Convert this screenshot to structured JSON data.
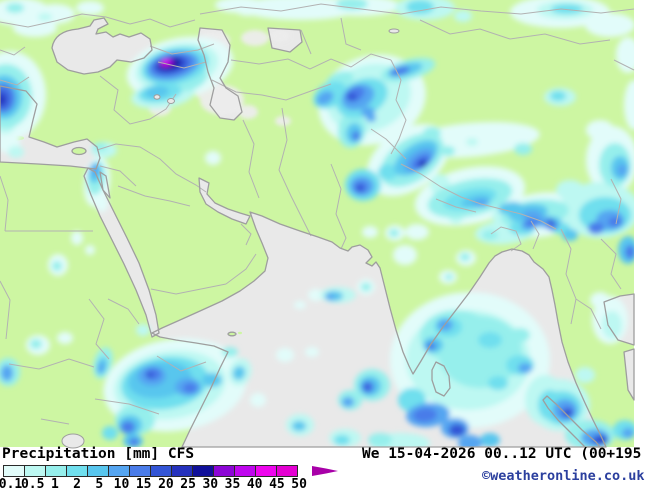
{
  "legend": {
    "title": "Precipitation [mm] CFS",
    "scale_labels": [
      "0.1",
      "0.5",
      "1",
      "2",
      "5",
      "10",
      "15",
      "20",
      "25",
      "30",
      "35",
      "40",
      "45",
      "50"
    ],
    "scale_colors": [
      "#e2fcfa",
      "#bdf8f2",
      "#96efec",
      "#70dfee",
      "#58c6ee",
      "#55a5f1",
      "#4a7ce9",
      "#3355d6",
      "#2531bd",
      "#10109a",
      "#8c06d6",
      "#bf06ee",
      "#ee06ee",
      "#e400d2"
    ],
    "arrow_color": "#a800a8"
  },
  "footer": {
    "datetime": "We 15-04-2026 00..12 UTC (00+195",
    "copyright": "©weatheronline.co.uk"
  },
  "colors": {
    "background": "#ffffff",
    "text": "#000000",
    "copyright_text": "#2b3f9e",
    "land": "#cdf6a2",
    "sea": "#e9e9e9",
    "coast": "#9e9e9e",
    "border": "#b2b2b2",
    "desert_haze": "#ededed"
  },
  "precipitation_blobs": [
    [
      20,
      12,
      30,
      14,
      0,
      0
    ],
    [
      55,
      14,
      20,
      10,
      0,
      0
    ],
    [
      35,
      28,
      22,
      9,
      0,
      0
    ],
    [
      15,
      8,
      9,
      5,
      2,
      0
    ],
    [
      45,
      17,
      7,
      4,
      1,
      0
    ],
    [
      90,
      8,
      14,
      7,
      0,
      0
    ],
    [
      240,
      5,
      25,
      8,
      0,
      0
    ],
    [
      10,
      95,
      36,
      44,
      0,
      0
    ],
    [
      6,
      96,
      26,
      32,
      2,
      0
    ],
    [
      4,
      97,
      18,
      22,
      4,
      0
    ],
    [
      3,
      98,
      12,
      15,
      6,
      0
    ],
    [
      2,
      99,
      7,
      9,
      7,
      0
    ],
    [
      1,
      100,
      4,
      5,
      8,
      0
    ],
    [
      8,
      143,
      12,
      10,
      0,
      0
    ],
    [
      16,
      152,
      8,
      6,
      1,
      0
    ],
    [
      5,
      125,
      10,
      9,
      1,
      0
    ],
    [
      180,
      68,
      54,
      30,
      0,
      -12
    ],
    [
      177,
      67,
      42,
      23,
      1,
      -12
    ],
    [
      175,
      66,
      34,
      18,
      3,
      -12
    ],
    [
      173,
      66,
      27,
      14,
      5,
      -12
    ],
    [
      172,
      65,
      22,
      11,
      6,
      -12
    ],
    [
      171,
      65,
      17,
      8.5,
      7,
      -12
    ],
    [
      170,
      64,
      13,
      6.5,
      8,
      -12
    ],
    [
      169,
      64,
      10,
      5,
      9,
      -12
    ],
    [
      167,
      63,
      7,
      4,
      10,
      -12
    ],
    [
      166,
      62,
      5,
      3,
      11,
      -12
    ],
    [
      165,
      62,
      3.5,
      2.2,
      12,
      -12
    ],
    [
      163,
      95,
      32,
      13,
      1,
      -8
    ],
    [
      160,
      93,
      22,
      9,
      3,
      -8
    ],
    [
      157,
      92,
      12,
      6,
      4,
      -8
    ],
    [
      190,
      80,
      18,
      10,
      2,
      -20
    ],
    [
      104,
      150,
      13,
      8,
      1,
      0
    ],
    [
      100,
      147,
      7,
      4,
      2,
      0
    ],
    [
      97,
      182,
      13,
      25,
      0,
      8
    ],
    [
      96,
      178,
      9,
      17,
      2,
      8
    ],
    [
      95,
      173,
      6,
      10,
      4,
      8
    ],
    [
      95,
      170,
      4,
      6,
      5,
      0
    ],
    [
      102,
      203,
      6,
      9,
      0,
      0
    ],
    [
      58,
      265,
      10,
      11,
      0,
      0
    ],
    [
      57,
      266,
      5,
      5,
      2,
      0
    ],
    [
      77,
      238,
      6,
      7,
      0,
      0
    ],
    [
      90,
      250,
      5,
      5,
      0,
      0
    ],
    [
      213,
      158,
      8,
      7,
      0,
      0
    ],
    [
      143,
      330,
      7,
      6,
      1,
      0
    ],
    [
      285,
      355,
      9,
      7,
      0,
      0
    ],
    [
      312,
      352,
      7,
      5,
      0,
      0
    ],
    [
      316,
      295,
      8,
      6,
      0,
      0
    ],
    [
      300,
      305,
      6,
      4,
      0,
      0
    ],
    [
      175,
      385,
      72,
      46,
      0,
      -8
    ],
    [
      170,
      385,
      56,
      34,
      1,
      -8
    ],
    [
      165,
      383,
      44,
      26,
      3,
      -8
    ],
    [
      160,
      380,
      32,
      18,
      4,
      -8
    ],
    [
      152,
      376,
      14,
      10,
      5,
      0
    ],
    [
      153,
      374,
      8,
      6,
      6,
      0
    ],
    [
      150,
      375,
      4,
      3,
      7,
      0
    ],
    [
      188,
      387,
      13,
      9,
      5,
      0
    ],
    [
      190,
      388,
      7,
      5,
      6,
      0
    ],
    [
      212,
      380,
      10,
      7,
      4,
      0
    ],
    [
      103,
      363,
      9,
      16,
      2,
      15
    ],
    [
      102,
      366,
      5,
      9,
      4,
      15
    ],
    [
      101,
      368,
      3,
      5,
      5,
      15
    ],
    [
      135,
      420,
      20,
      15,
      2,
      0
    ],
    [
      130,
      425,
      12,
      10,
      4,
      0
    ],
    [
      128,
      427,
      7,
      6,
      6,
      0
    ],
    [
      133,
      441,
      10,
      7,
      4,
      0
    ],
    [
      134,
      442,
      5,
      4,
      6,
      0
    ],
    [
      110,
      433,
      8,
      7,
      3,
      0
    ],
    [
      8,
      372,
      12,
      14,
      2,
      0
    ],
    [
      7,
      373,
      6,
      8,
      5,
      0
    ],
    [
      38,
      345,
      12,
      10,
      0,
      0
    ],
    [
      36,
      344,
      6,
      5,
      2,
      0
    ],
    [
      65,
      338,
      8,
      6,
      0,
      0
    ],
    [
      240,
      372,
      11,
      14,
      1,
      20
    ],
    [
      239,
      373,
      6,
      7,
      4,
      20
    ],
    [
      258,
      400,
      8,
      7,
      0,
      0
    ],
    [
      230,
      352,
      8,
      5,
      2,
      0
    ],
    [
      300,
      425,
      14,
      11,
      1,
      0
    ],
    [
      299,
      426,
      7,
      5,
      4,
      0
    ],
    [
      345,
      438,
      16,
      9,
      1,
      0
    ],
    [
      342,
      440,
      8,
      5,
      3,
      0
    ],
    [
      372,
      100,
      55,
      44,
      0,
      -20
    ],
    [
      369,
      98,
      43,
      33,
      1,
      -20
    ],
    [
      408,
      70,
      28,
      10,
      2,
      -15
    ],
    [
      405,
      70,
      18,
      6,
      4,
      -15
    ],
    [
      400,
      71,
      10,
      4,
      6,
      -15
    ],
    [
      362,
      98,
      27,
      18,
      3,
      -25
    ],
    [
      358,
      97,
      17,
      12,
      5,
      -25
    ],
    [
      355,
      94,
      10,
      7,
      6,
      -25
    ],
    [
      352,
      97,
      5,
      4,
      7,
      0
    ],
    [
      368,
      112,
      7,
      5,
      5,
      0
    ],
    [
      371,
      118,
      5,
      4,
      5,
      0
    ],
    [
      330,
      95,
      18,
      12,
      3,
      -30
    ],
    [
      325,
      98,
      9,
      6,
      5,
      -30
    ],
    [
      352,
      130,
      14,
      18,
      2,
      10
    ],
    [
      354,
      133,
      8,
      10,
      4,
      10
    ],
    [
      356,
      136,
      4,
      5,
      6,
      0
    ],
    [
      340,
      80,
      14,
      8,
      2,
      -20
    ],
    [
      408,
      160,
      46,
      30,
      0,
      -35
    ],
    [
      470,
      196,
      56,
      28,
      0,
      -12
    ],
    [
      540,
      215,
      46,
      22,
      0,
      -8
    ],
    [
      412,
      160,
      36,
      21,
      2,
      -35
    ],
    [
      470,
      198,
      43,
      18,
      2,
      -12
    ],
    [
      535,
      214,
      34,
      14,
      2,
      -8
    ],
    [
      416,
      158,
      25,
      13,
      4,
      -35
    ],
    [
      419,
      160,
      17,
      9,
      5,
      -35
    ],
    [
      421,
      162,
      11,
      6,
      6,
      -35
    ],
    [
      422,
      163,
      6,
      3.5,
      7,
      -35
    ],
    [
      423,
      164,
      3,
      2,
      9,
      0
    ],
    [
      363,
      185,
      18,
      16,
      3,
      0
    ],
    [
      362,
      186,
      12,
      10,
      5,
      0
    ],
    [
      361,
      187,
      7,
      6,
      6,
      0
    ],
    [
      360,
      188,
      4,
      3.5,
      7,
      0
    ],
    [
      388,
      172,
      10,
      8,
      3,
      0
    ],
    [
      470,
      199,
      27,
      10,
      3,
      -12
    ],
    [
      476,
      201,
      15,
      6,
      4,
      -12
    ],
    [
      481,
      203,
      8,
      4,
      5,
      0
    ],
    [
      510,
      208,
      12,
      6,
      4,
      -10
    ],
    [
      528,
      213,
      20,
      9,
      4,
      -8
    ],
    [
      532,
      215,
      10,
      5,
      5,
      0
    ],
    [
      545,
      222,
      9,
      5,
      5,
      0
    ],
    [
      552,
      226,
      6,
      4,
      6,
      0
    ],
    [
      440,
      185,
      10,
      11,
      1,
      0
    ],
    [
      456,
      214,
      8,
      10,
      1,
      0
    ],
    [
      500,
      216,
      8,
      8,
      1,
      0
    ],
    [
      505,
      232,
      30,
      12,
      1,
      -5
    ],
    [
      522,
      228,
      13,
      7,
      3,
      0
    ],
    [
      528,
      226,
      7,
      4,
      5,
      0
    ],
    [
      532,
      223,
      8,
      4,
      6,
      0
    ],
    [
      548,
      222,
      14,
      6,
      4,
      0
    ],
    [
      551,
      222,
      4,
      2.5,
      7,
      0
    ],
    [
      560,
      228,
      10,
      6,
      3,
      0
    ],
    [
      490,
      235,
      8,
      5,
      2,
      0
    ],
    [
      570,
      235,
      8,
      6,
      4,
      0
    ],
    [
      470,
      140,
      70,
      17,
      0,
      -5
    ],
    [
      432,
      133,
      9,
      6,
      2,
      0
    ],
    [
      448,
      151,
      7,
      5,
      2,
      0
    ],
    [
      472,
      142,
      6,
      4,
      1,
      0
    ],
    [
      523,
      149,
      9,
      6,
      2,
      0
    ],
    [
      560,
      97,
      16,
      9,
      1,
      0
    ],
    [
      558,
      96,
      8,
      5,
      3,
      0
    ],
    [
      600,
      130,
      14,
      10,
      0,
      0
    ],
    [
      300,
      8,
      60,
      12,
      0,
      0
    ],
    [
      360,
      6,
      40,
      10,
      0,
      0
    ],
    [
      352,
      4,
      16,
      6,
      2,
      0
    ],
    [
      425,
      8,
      30,
      12,
      1,
      0
    ],
    [
      420,
      7,
      14,
      7,
      3,
      0
    ],
    [
      463,
      16,
      9,
      6,
      1,
      0
    ],
    [
      248,
      8,
      14,
      8,
      0,
      0
    ],
    [
      560,
      12,
      50,
      16,
      0,
      0
    ],
    [
      565,
      10,
      28,
      9,
      1,
      0
    ],
    [
      567,
      9,
      16,
      5,
      3,
      0
    ],
    [
      610,
      25,
      25,
      12,
      0,
      0
    ],
    [
      628,
      55,
      12,
      18,
      0,
      0
    ],
    [
      612,
      160,
      26,
      34,
      0,
      0
    ],
    [
      615,
      165,
      16,
      22,
      2,
      0
    ],
    [
      620,
      168,
      9,
      12,
      4,
      0
    ],
    [
      622,
      170,
      5,
      6,
      5,
      0
    ],
    [
      600,
      210,
      40,
      28,
      1,
      0
    ],
    [
      605,
      215,
      26,
      18,
      3,
      0
    ],
    [
      610,
      220,
      14,
      10,
      5,
      0
    ],
    [
      615,
      222,
      7,
      5,
      6,
      0
    ],
    [
      596,
      228,
      8,
      6,
      6,
      0
    ],
    [
      570,
      190,
      14,
      10,
      1,
      0
    ],
    [
      628,
      250,
      10,
      14,
      4,
      0
    ],
    [
      630,
      252,
      5,
      7,
      6,
      0
    ],
    [
      634,
      105,
      10,
      25,
      0,
      0
    ],
    [
      395,
      233,
      10,
      8,
      0,
      0
    ],
    [
      394,
      233,
      5,
      4,
      2,
      0
    ],
    [
      417,
      232,
      12,
      8,
      0,
      0
    ],
    [
      405,
      255,
      12,
      10,
      0,
      0
    ],
    [
      466,
      258,
      10,
      8,
      0,
      0
    ],
    [
      465,
      257,
      5,
      4,
      2,
      0
    ],
    [
      448,
      277,
      9,
      7,
      0,
      0
    ],
    [
      449,
      277,
      4,
      3,
      2,
      0
    ],
    [
      366,
      287,
      9,
      8,
      0,
      0
    ],
    [
      366,
      287,
      5,
      4,
      2,
      0
    ],
    [
      370,
      232,
      8,
      6,
      0,
      0
    ],
    [
      446,
      336,
      6,
      5,
      0,
      0
    ],
    [
      338,
      295,
      18,
      8,
      1,
      0
    ],
    [
      334,
      296,
      9,
      5,
      4,
      0
    ],
    [
      330,
      297,
      5,
      3,
      5,
      0
    ],
    [
      470,
      360,
      80,
      68,
      0,
      0
    ],
    [
      462,
      332,
      50,
      38,
      0,
      0
    ],
    [
      468,
      360,
      62,
      50,
      1,
      0
    ],
    [
      456,
      336,
      36,
      26,
      2,
      0
    ],
    [
      480,
      352,
      42,
      36,
      2,
      0
    ],
    [
      448,
      327,
      14,
      10,
      3,
      0
    ],
    [
      445,
      325,
      8,
      6,
      5,
      0
    ],
    [
      433,
      345,
      10,
      8,
      4,
      0
    ],
    [
      431,
      346,
      5,
      4,
      6,
      0
    ],
    [
      490,
      340,
      12,
      8,
      3,
      0
    ],
    [
      520,
      335,
      10,
      7,
      2,
      0
    ],
    [
      520,
      365,
      14,
      10,
      3,
      0
    ],
    [
      525,
      368,
      7,
      5,
      5,
      0
    ],
    [
      498,
      383,
      10,
      7,
      3,
      0
    ],
    [
      428,
      415,
      22,
      12,
      5,
      -5
    ],
    [
      425,
      415,
      12,
      7,
      6,
      -5
    ],
    [
      455,
      428,
      14,
      10,
      5,
      0
    ],
    [
      457,
      430,
      8,
      6,
      7,
      0
    ],
    [
      470,
      443,
      12,
      8,
      5,
      0
    ],
    [
      490,
      440,
      10,
      7,
      4,
      0
    ],
    [
      412,
      400,
      14,
      12,
      3,
      0
    ],
    [
      372,
      385,
      18,
      16,
      2,
      0
    ],
    [
      370,
      386,
      11,
      10,
      4,
      0
    ],
    [
      368,
      387,
      6,
      6,
      6,
      0
    ],
    [
      367,
      387,
      3,
      3,
      7,
      0
    ],
    [
      350,
      400,
      12,
      10,
      2,
      0
    ],
    [
      348,
      402,
      6,
      5,
      5,
      0
    ],
    [
      545,
      400,
      20,
      25,
      1,
      0
    ],
    [
      550,
      405,
      12,
      15,
      3,
      0
    ],
    [
      400,
      443,
      30,
      10,
      1,
      0
    ],
    [
      380,
      440,
      12,
      7,
      2,
      0
    ],
    [
      560,
      405,
      30,
      26,
      1,
      0
    ],
    [
      562,
      408,
      20,
      17,
      3,
      0
    ],
    [
      565,
      410,
      12,
      11,
      5,
      0
    ],
    [
      567,
      412,
      7,
      6,
      6,
      0
    ],
    [
      568,
      413,
      3.5,
      3,
      8,
      0
    ],
    [
      590,
      435,
      25,
      15,
      2,
      0
    ],
    [
      595,
      438,
      14,
      9,
      5,
      0
    ],
    [
      600,
      440,
      8,
      5,
      7,
      0
    ],
    [
      602,
      441,
      3,
      2.5,
      8,
      0
    ],
    [
      625,
      430,
      12,
      10,
      3,
      0
    ],
    [
      628,
      433,
      6,
      5,
      5,
      0
    ],
    [
      610,
      320,
      18,
      24,
      0,
      0
    ],
    [
      612,
      325,
      10,
      14,
      1,
      0
    ],
    [
      600,
      300,
      10,
      8,
      0,
      0
    ],
    [
      585,
      375,
      10,
      8,
      1,
      0
    ]
  ]
}
